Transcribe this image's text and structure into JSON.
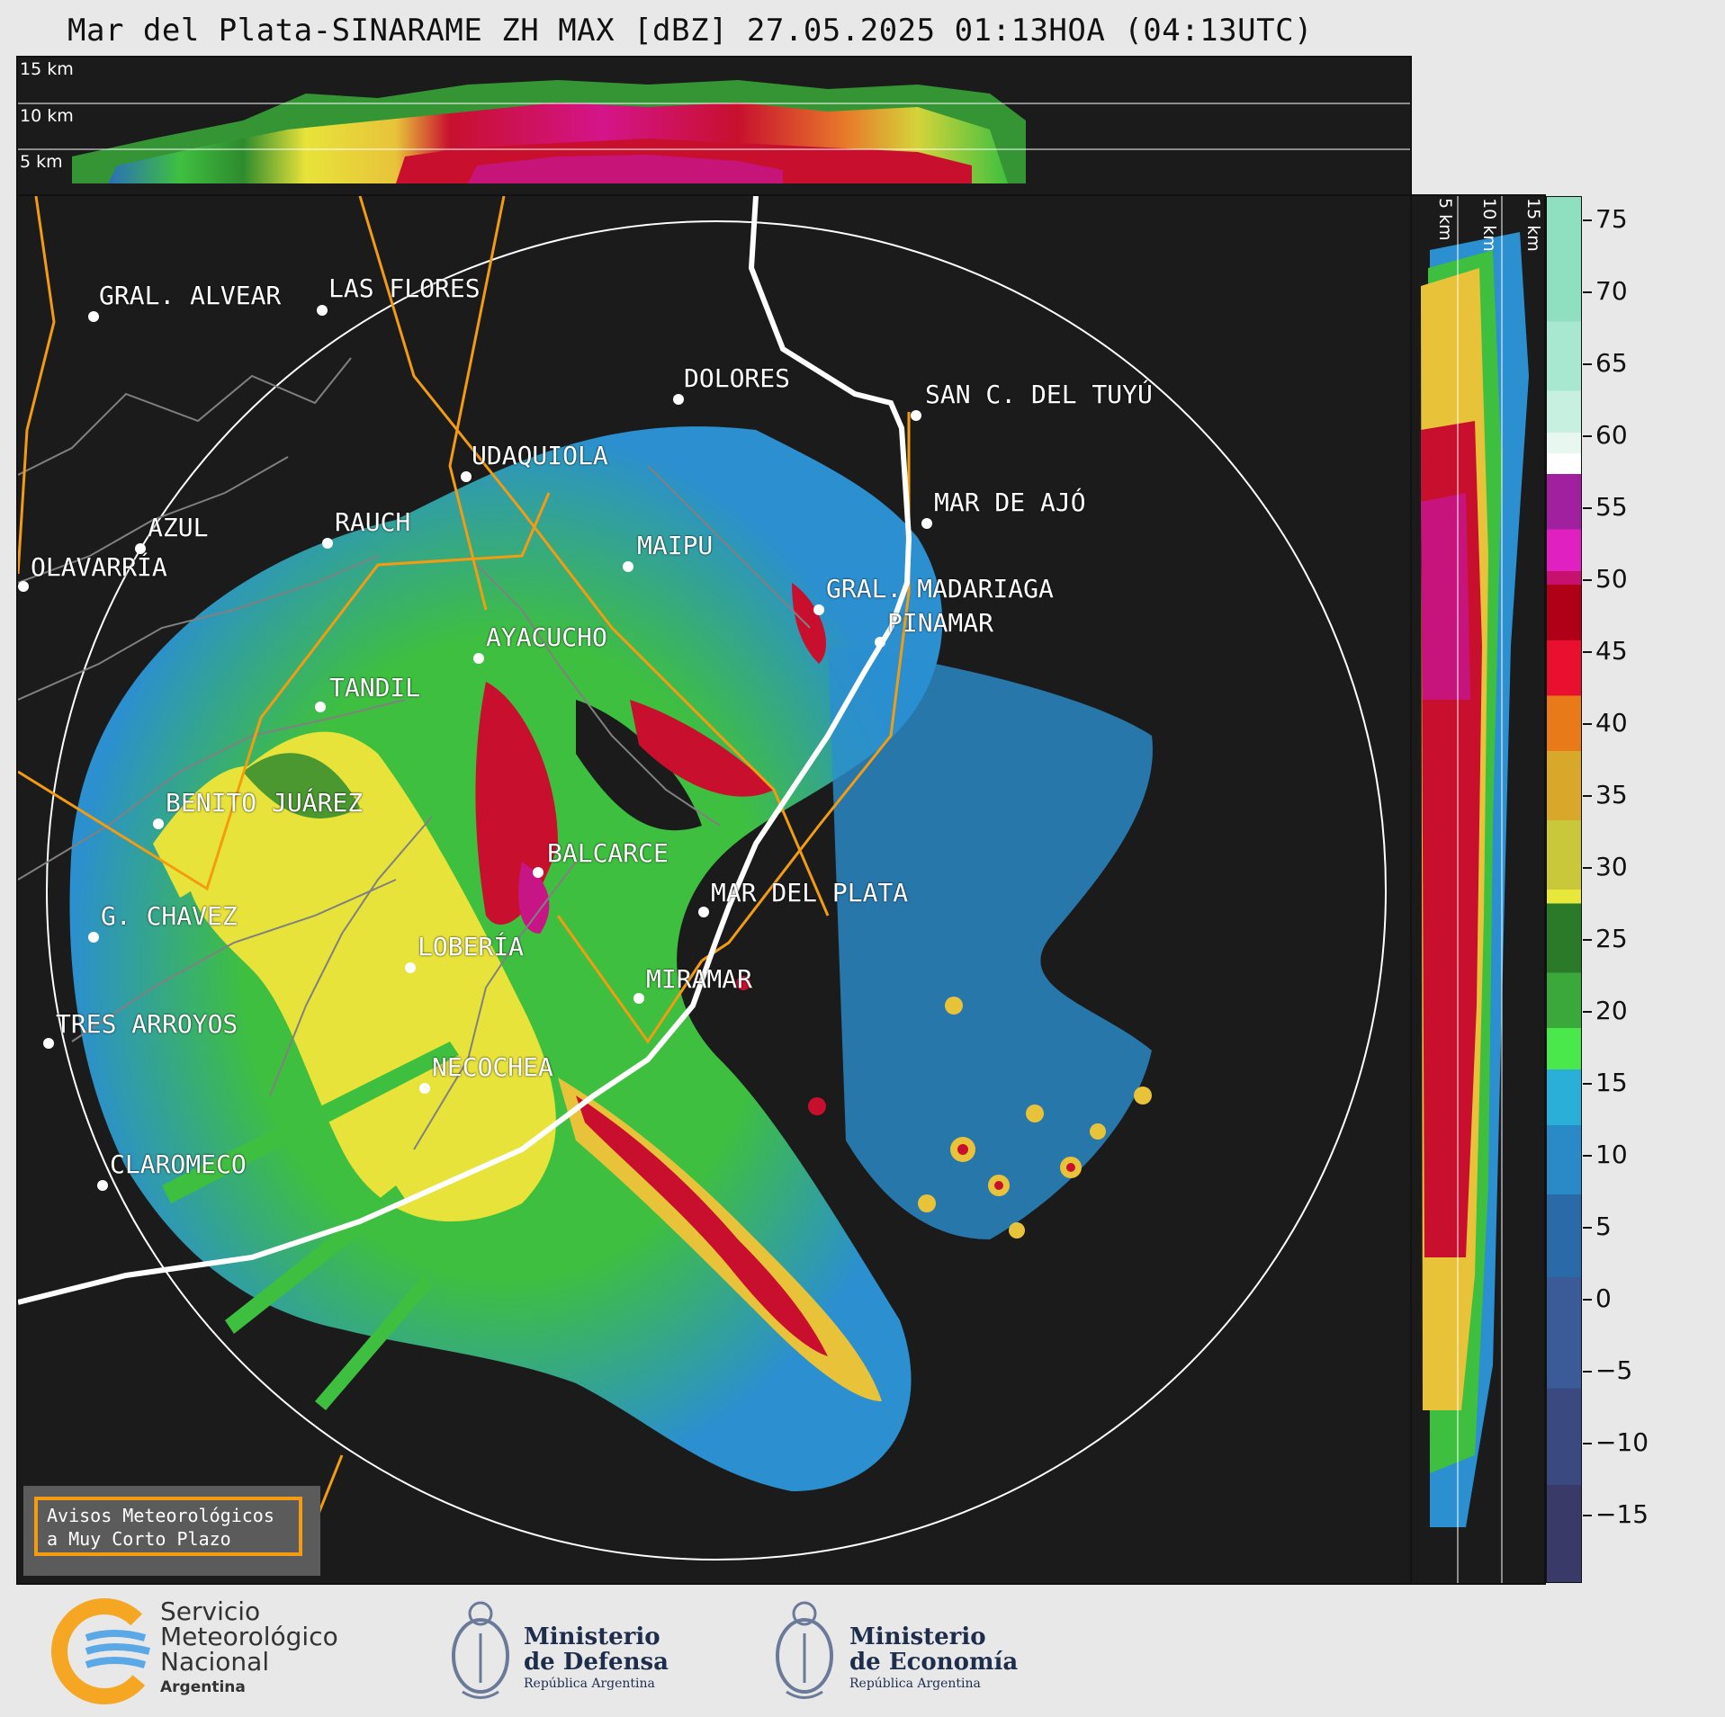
{
  "title": "Mar del Plata-SINARAME ZH MAX [dBZ] 27.05.2025 01:13HOA (04:13UTC)",
  "top_panel": {
    "height_labels": [
      "15 km",
      "10 km",
      "5 km"
    ]
  },
  "right_panel": {
    "height_labels": [
      "5 km",
      "10 km",
      "15 km"
    ]
  },
  "colorbar": {
    "ticks": [
      "75",
      "70",
      "65",
      "60",
      "55",
      "50",
      "45",
      "40",
      "35",
      "30",
      "25",
      "20",
      "15",
      "10",
      "5",
      "0",
      "−5",
      "−10",
      "−15"
    ]
  },
  "cities": [
    {
      "name": "GRAL. ALVEAR"
    },
    {
      "name": "LAS FLORES"
    },
    {
      "name": "DOLORES"
    },
    {
      "name": "SAN C. DEL TUYÚ"
    },
    {
      "name": "UDAQUIOLA"
    },
    {
      "name": "MAR DE AJÓ"
    },
    {
      "name": "AZUL"
    },
    {
      "name": "RAUCH"
    },
    {
      "name": "MAIPU"
    },
    {
      "name": "OLAVARRÍA"
    },
    {
      "name": "GRAL. MADARIAGA"
    },
    {
      "name": "PINAMAR"
    },
    {
      "name": "AYACUCHO"
    },
    {
      "name": "TANDIL"
    },
    {
      "name": "BENITO JUÁREZ"
    },
    {
      "name": "BALCARCE"
    },
    {
      "name": "MAR DEL PLATA"
    },
    {
      "name": "G. CHAVEZ"
    },
    {
      "name": "LOBERÍA"
    },
    {
      "name": "MIRAMAR"
    },
    {
      "name": "TRES ARROYOS"
    },
    {
      "name": "NECOCHEA"
    },
    {
      "name": "CLAROMECO"
    }
  ],
  "avisos": {
    "line1": "Avisos Meteorológicos",
    "line2": "a Muy Corto Plazo"
  },
  "footer": {
    "smn": {
      "line1": "Servicio",
      "line2": "Meteorológico",
      "line3": "Nacional",
      "line4": "Argentina"
    },
    "defensa": {
      "line1": "Ministerio",
      "line2": "de Defensa",
      "line3": "República Argentina"
    },
    "economia": {
      "line1": "Ministerio",
      "line2": "de Economía",
      "line3": "República Argentina"
    }
  },
  "colors": {
    "background": "#1b1b1b",
    "coast": "#ffffff",
    "roads": "#f39c12",
    "borders": "#808080"
  }
}
